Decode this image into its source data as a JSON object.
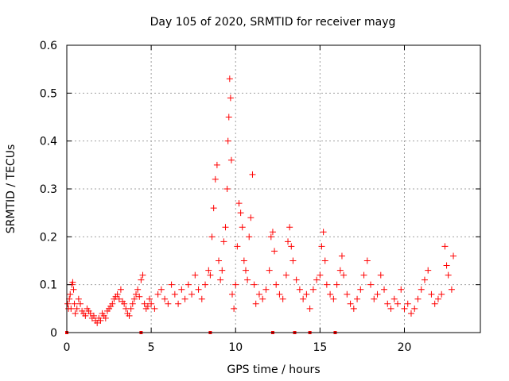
{
  "chart_data": {
    "type": "scatter",
    "title": "Day 105 of 2020, SRMTID for receiver mayg",
    "xlabel": "GPS time / hours",
    "ylabel": "SRMTID / TECUs",
    "xlim": [
      0,
      24.5
    ],
    "ylim": [
      0,
      0.6
    ],
    "xticks": [
      0,
      5,
      10,
      15,
      20
    ],
    "xtick_labels": [
      "0",
      "5",
      "10",
      "15",
      "20"
    ],
    "yticks": [
      0,
      0.1,
      0.2,
      0.3,
      0.4,
      0.5,
      0.6
    ],
    "ytick_labels": [
      "0",
      "0.1",
      "0.2",
      "0.3",
      "0.4",
      "0.5",
      "0.6"
    ],
    "grid": true,
    "marker": "+",
    "color": "#ff0000",
    "series": [
      {
        "name": "SRMTID",
        "points": [
          [
            0.05,
            0.06
          ],
          [
            0.1,
            0.05
          ],
          [
            0.15,
            0.07
          ],
          [
            0.2,
            0.08
          ],
          [
            0.25,
            0.05
          ],
          [
            0.3,
            0.1
          ],
          [
            0.35,
            0.105
          ],
          [
            0.4,
            0.09
          ],
          [
            0.45,
            0.06
          ],
          [
            0.5,
            0.04
          ],
          [
            0.6,
            0.05
          ],
          [
            0.7,
            0.07
          ],
          [
            0.8,
            0.06
          ],
          [
            0.9,
            0.045
          ],
          [
            1.0,
            0.04
          ],
          [
            1.1,
            0.035
          ],
          [
            1.2,
            0.05
          ],
          [
            1.3,
            0.045
          ],
          [
            1.4,
            0.04
          ],
          [
            1.5,
            0.03
          ],
          [
            1.6,
            0.035
          ],
          [
            1.7,
            0.025
          ],
          [
            1.8,
            0.02
          ],
          [
            1.9,
            0.03
          ],
          [
            2.0,
            0.025
          ],
          [
            2.1,
            0.04
          ],
          [
            2.2,
            0.035
          ],
          [
            2.3,
            0.03
          ],
          [
            2.4,
            0.045
          ],
          [
            2.5,
            0.05
          ],
          [
            2.6,
            0.055
          ],
          [
            2.7,
            0.06
          ],
          [
            2.8,
            0.07
          ],
          [
            2.9,
            0.075
          ],
          [
            3.0,
            0.08
          ],
          [
            3.1,
            0.07
          ],
          [
            3.2,
            0.09
          ],
          [
            3.3,
            0.065
          ],
          [
            3.4,
            0.06
          ],
          [
            3.5,
            0.05
          ],
          [
            3.6,
            0.04
          ],
          [
            3.7,
            0.035
          ],
          [
            3.8,
            0.05
          ],
          [
            3.9,
            0.06
          ],
          [
            4.0,
            0.07
          ],
          [
            4.1,
            0.08
          ],
          [
            4.2,
            0.09
          ],
          [
            4.3,
            0.075
          ],
          [
            4.4,
            0.11
          ],
          [
            4.5,
            0.12
          ],
          [
            4.6,
            0.06
          ],
          [
            4.7,
            0.05
          ],
          [
            4.8,
            0.055
          ],
          [
            4.9,
            0.07
          ],
          [
            5.0,
            0.06
          ],
          [
            5.2,
            0.05
          ],
          [
            5.4,
            0.08
          ],
          [
            5.6,
            0.09
          ],
          [
            5.8,
            0.07
          ],
          [
            6.0,
            0.06
          ],
          [
            6.2,
            0.1
          ],
          [
            6.4,
            0.08
          ],
          [
            6.6,
            0.06
          ],
          [
            6.8,
            0.09
          ],
          [
            7.0,
            0.07
          ],
          [
            7.2,
            0.1
          ],
          [
            7.4,
            0.08
          ],
          [
            7.6,
            0.12
          ],
          [
            7.8,
            0.09
          ],
          [
            8.0,
            0.07
          ],
          [
            8.2,
            0.1
          ],
          [
            8.4,
            0.13
          ],
          [
            8.5,
            0.12
          ],
          [
            8.6,
            0.2
          ],
          [
            8.7,
            0.26
          ],
          [
            8.8,
            0.32
          ],
          [
            8.9,
            0.35
          ],
          [
            9.0,
            0.15
          ],
          [
            9.1,
            0.11
          ],
          [
            9.2,
            0.13
          ],
          [
            9.3,
            0.19
          ],
          [
            9.4,
            0.22
          ],
          [
            9.5,
            0.3
          ],
          [
            9.55,
            0.4
          ],
          [
            9.6,
            0.45
          ],
          [
            9.65,
            0.53
          ],
          [
            9.7,
            0.49
          ],
          [
            9.75,
            0.36
          ],
          [
            9.8,
            0.08
          ],
          [
            9.9,
            0.05
          ],
          [
            10.0,
            0.1
          ],
          [
            10.1,
            0.18
          ],
          [
            10.2,
            0.27
          ],
          [
            10.3,
            0.25
          ],
          [
            10.4,
            0.22
          ],
          [
            10.5,
            0.15
          ],
          [
            10.6,
            0.13
          ],
          [
            10.7,
            0.11
          ],
          [
            10.8,
            0.2
          ],
          [
            10.9,
            0.24
          ],
          [
            11.0,
            0.33
          ],
          [
            11.1,
            0.1
          ],
          [
            11.2,
            0.06
          ],
          [
            11.4,
            0.08
          ],
          [
            11.6,
            0.07
          ],
          [
            11.8,
            0.09
          ],
          [
            12.0,
            0.13
          ],
          [
            12.1,
            0.2
          ],
          [
            12.2,
            0.21
          ],
          [
            12.3,
            0.17
          ],
          [
            12.4,
            0.1
          ],
          [
            12.6,
            0.08
          ],
          [
            12.8,
            0.07
          ],
          [
            13.0,
            0.12
          ],
          [
            13.1,
            0.19
          ],
          [
            13.2,
            0.22
          ],
          [
            13.3,
            0.18
          ],
          [
            13.4,
            0.15
          ],
          [
            13.6,
            0.11
          ],
          [
            13.8,
            0.09
          ],
          [
            14.0,
            0.07
          ],
          [
            14.2,
            0.08
          ],
          [
            14.4,
            0.05
          ],
          [
            14.6,
            0.09
          ],
          [
            14.8,
            0.11
          ],
          [
            15.0,
            0.12
          ],
          [
            15.1,
            0.18
          ],
          [
            15.2,
            0.21
          ],
          [
            15.3,
            0.15
          ],
          [
            15.4,
            0.1
          ],
          [
            15.6,
            0.08
          ],
          [
            15.8,
            0.07
          ],
          [
            16.0,
            0.1
          ],
          [
            16.2,
            0.13
          ],
          [
            16.3,
            0.16
          ],
          [
            16.4,
            0.12
          ],
          [
            16.6,
            0.08
          ],
          [
            16.8,
            0.06
          ],
          [
            17.0,
            0.05
          ],
          [
            17.2,
            0.07
          ],
          [
            17.4,
            0.09
          ],
          [
            17.6,
            0.12
          ],
          [
            17.8,
            0.15
          ],
          [
            18.0,
            0.1
          ],
          [
            18.2,
            0.07
          ],
          [
            18.4,
            0.08
          ],
          [
            18.6,
            0.12
          ],
          [
            18.8,
            0.09
          ],
          [
            19.0,
            0.06
          ],
          [
            19.2,
            0.05
          ],
          [
            19.4,
            0.07
          ],
          [
            19.6,
            0.06
          ],
          [
            19.8,
            0.09
          ],
          [
            20.0,
            0.05
          ],
          [
            20.2,
            0.06
          ],
          [
            20.4,
            0.04
          ],
          [
            20.6,
            0.05
          ],
          [
            20.8,
            0.07
          ],
          [
            21.0,
            0.09
          ],
          [
            21.2,
            0.11
          ],
          [
            21.4,
            0.13
          ],
          [
            21.6,
            0.08
          ],
          [
            21.8,
            0.06
          ],
          [
            22.0,
            0.07
          ],
          [
            22.2,
            0.08
          ],
          [
            22.4,
            0.18
          ],
          [
            22.5,
            0.14
          ],
          [
            22.6,
            0.12
          ],
          [
            22.8,
            0.09
          ],
          [
            22.9,
            0.16
          ]
        ]
      }
    ],
    "zero_points_x": [
      0.0,
      4.4,
      8.5,
      12.2,
      13.5,
      14.4,
      15.9
    ]
  }
}
